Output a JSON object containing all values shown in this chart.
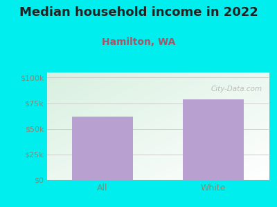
{
  "title": "Median household income in 2022",
  "subtitle": "Hamilton, WA",
  "categories": [
    "All",
    "White"
  ],
  "values": [
    62000,
    79000
  ],
  "bar_color": "#B8A0D0",
  "background_color": "#00EEEE",
  "yticks": [
    0,
    25000,
    50000,
    75000,
    100000
  ],
  "ytick_labels": [
    "$0",
    "$25k",
    "$50k",
    "$75k",
    "$100k"
  ],
  "ylim": [
    0,
    105000
  ],
  "title_fontsize": 13,
  "subtitle_fontsize": 10,
  "subtitle_color": "#AA5566",
  "tick_color": "#888877",
  "watermark": "City-Data.com"
}
